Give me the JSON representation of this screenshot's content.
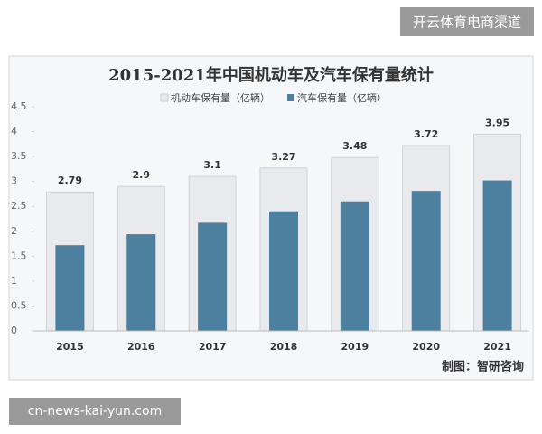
{
  "header": {
    "badge": "开云体育电商渠道"
  },
  "footer": {
    "url": "cn-news-kai-yun.com"
  },
  "chart_data": {
    "type": "bar",
    "title": "2015-2021年中国机动车及汽车保有量统计",
    "categories": [
      "2015",
      "2016",
      "2017",
      "2018",
      "2019",
      "2020",
      "2021"
    ],
    "series": [
      {
        "name": "机动车保有量（亿辆）",
        "color": "#e8eaee",
        "values": [
          2.79,
          2.9,
          3.1,
          3.27,
          3.48,
          3.72,
          3.95
        ]
      },
      {
        "name": "汽车保有量（亿辆）",
        "color": "#4d7f9f",
        "values": [
          1.72,
          1.94,
          2.17,
          2.4,
          2.6,
          2.81,
          3.02
        ]
      }
    ],
    "ylim": [
      0,
      4.5
    ],
    "yticks": [
      0,
      0.5,
      1,
      1.5,
      2,
      2.5,
      3,
      3.5,
      4,
      4.5
    ],
    "source": "制图：智研咨询"
  }
}
